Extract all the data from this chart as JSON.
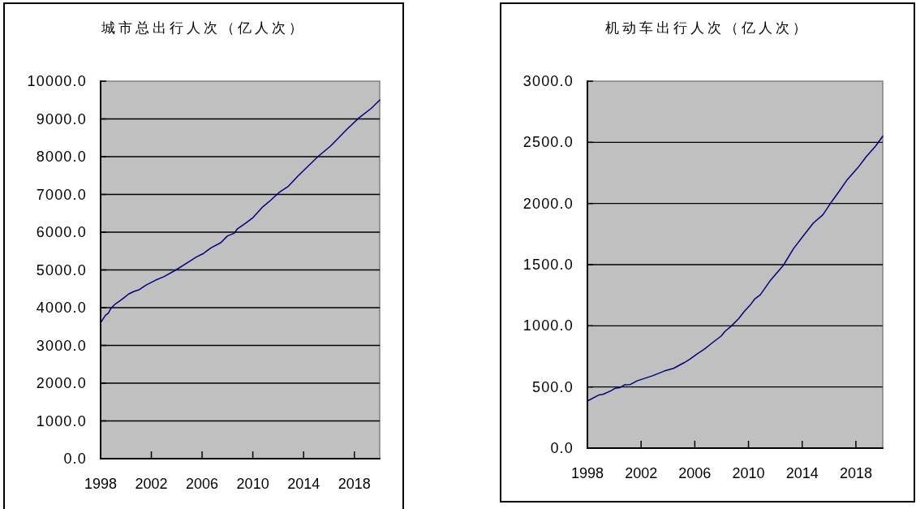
{
  "chart_data": [
    {
      "type": "line",
      "title": "城市总出行人次（亿人次）",
      "xlim": [
        1998,
        2020
      ],
      "xticks": [
        1998,
        2002,
        2006,
        2010,
        2014,
        2018
      ],
      "ylim": [
        0,
        10000
      ],
      "yticks": [
        {
          "value": 0,
          "label": "0.0"
        },
        {
          "value": 1000,
          "label": "1000.0"
        },
        {
          "value": 2000,
          "label": "2000.0"
        },
        {
          "value": 3000,
          "label": "3000.0"
        },
        {
          "value": 4000,
          "label": "4000.0"
        },
        {
          "value": 5000,
          "label": "5000.0"
        },
        {
          "value": 6000,
          "label": "6000.0"
        },
        {
          "value": 7000,
          "label": "7000.0"
        },
        {
          "value": 8000,
          "label": "8000.0"
        },
        {
          "value": 9000,
          "label": "9000.0"
        },
        {
          "value": 10000,
          "label": "10000.0"
        }
      ],
      "grid": "y",
      "series": [
        {
          "color": "#000080",
          "x": [
            1998.0,
            1998.38,
            1998.6,
            1998.81,
            1999.13,
            1999.56,
            1999.88,
            2000.2,
            2000.63,
            2001.06,
            2001.59,
            2002.34,
            2002.98,
            2003.94,
            2004.79,
            2005.54,
            2006.08,
            2006.72,
            2007.47,
            2008.0,
            2008.53,
            2008.79,
            2009.39,
            2010.03,
            2010.78,
            2011.42,
            2012.06,
            2012.81,
            2013.56,
            2015.16,
            2016.12,
            2017.4,
            2018.37,
            2019.33,
            2020.0
          ],
          "values": [
            3600,
            3800,
            3850,
            3980,
            4090,
            4190,
            4270,
            4360,
            4430,
            4480,
            4600,
            4730,
            4820,
            5000,
            5180,
            5340,
            5430,
            5590,
            5720,
            5900,
            5970,
            6090,
            6230,
            6390,
            6670,
            6850,
            7050,
            7220,
            7490,
            8010,
            8280,
            8720,
            9030,
            9280,
            9500
          ]
        }
      ]
    },
    {
      "type": "line",
      "title": "机动车出行人次（亿人次）",
      "xlim": [
        1998,
        2020
      ],
      "xticks": [
        1998,
        2002,
        2006,
        2010,
        2014,
        2018
      ],
      "ylim": [
        0,
        3000
      ],
      "yticks": [
        {
          "value": 0,
          "label": "0.0"
        },
        {
          "value": 500,
          "label": "500.0"
        },
        {
          "value": 1000,
          "label": "1000.0"
        },
        {
          "value": 1500,
          "label": "1500.0"
        },
        {
          "value": 2000,
          "label": "2000.0"
        },
        {
          "value": 2500,
          "label": "2500.0"
        },
        {
          "value": 3000,
          "label": "3000.0"
        }
      ],
      "grid": "y",
      "series": [
        {
          "color": "#000080",
          "x": [
            1998.0,
            1998.87,
            1999.17,
            1999.78,
            2000.08,
            2000.42,
            2000.79,
            2001.19,
            2001.7,
            2002.81,
            2003.72,
            2004.42,
            2005.23,
            2005.64,
            2006.14,
            2006.75,
            2007.25,
            2007.96,
            2008.26,
            2008.67,
            2009.27,
            2009.68,
            2010.18,
            2010.48,
            2010.88,
            2011.59,
            2012.6,
            2013.35,
            2014.12,
            2014.83,
            2015.54,
            2016.14,
            2016.75,
            2017.35,
            2018.16,
            2018.77,
            2019.48,
            2020.0
          ],
          "values": [
            385,
            435,
            440,
            470,
            490,
            495,
            518,
            520,
            550,
            590,
            630,
            652,
            700,
            727,
            767,
            812,
            856,
            916,
            956,
            993,
            1059,
            1117,
            1177,
            1221,
            1254,
            1365,
            1495,
            1630,
            1741,
            1840,
            1907,
            2006,
            2099,
            2194,
            2294,
            2383,
            2471,
            2550
          ]
        }
      ]
    }
  ]
}
